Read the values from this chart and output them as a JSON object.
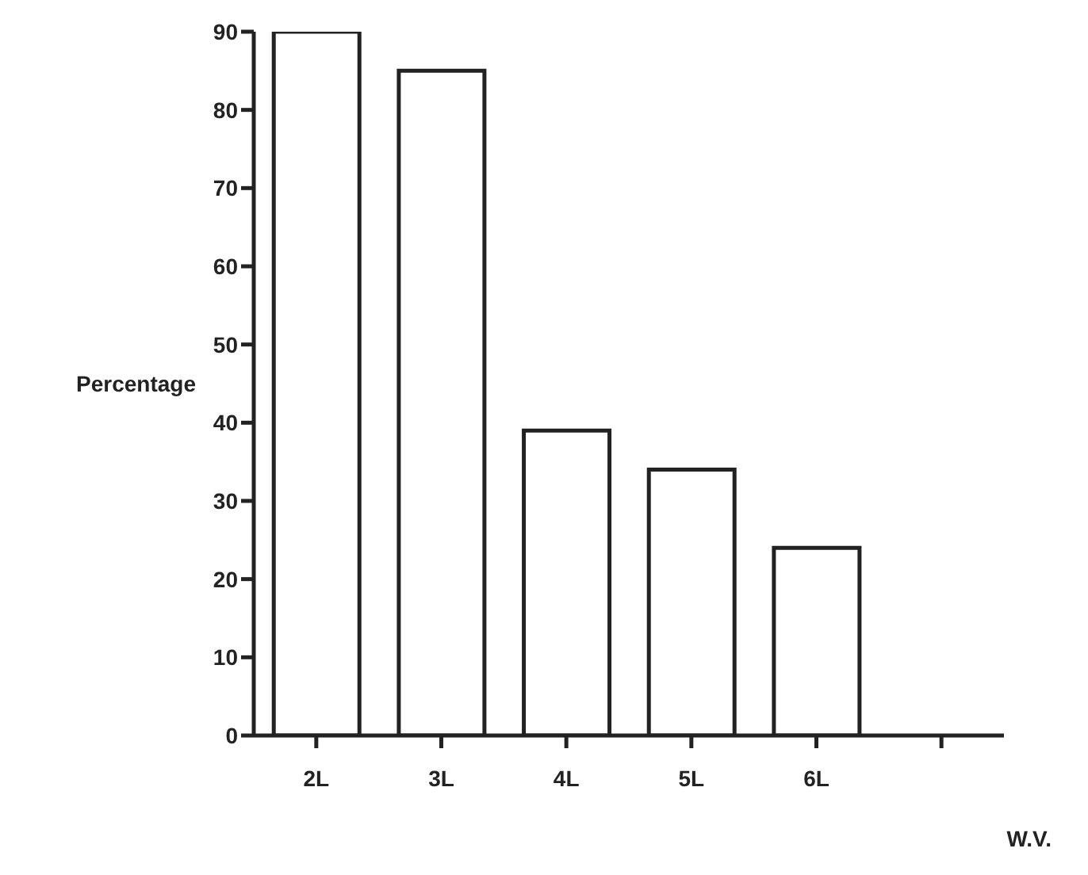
{
  "chart_data": {
    "type": "bar",
    "xlabel": "W.V.",
    "ylabel": "Percentage",
    "categories": [
      "2L",
      "3L",
      "4L",
      "5L",
      "6L",
      null
    ],
    "values": [
      90,
      85,
      39,
      34,
      24,
      null
    ],
    "color": "#ffffff",
    "ylim": [
      0,
      90
    ],
    "yticks": [
      0,
      10,
      20,
      30,
      40,
      50,
      60,
      70,
      80,
      90
    ],
    "grid": false,
    "legend": false
  }
}
